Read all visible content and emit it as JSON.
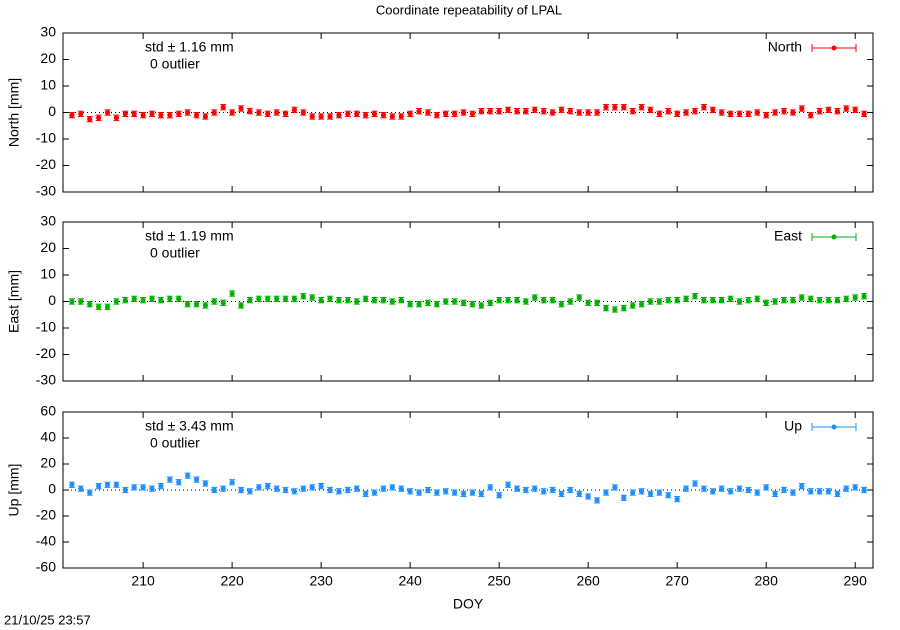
{
  "title": "Coordinate repeatability of LPAL",
  "footer": "21/10/25 23:57",
  "chart_data": [
    {
      "type": "errorbar",
      "ylabel": "North [mm]",
      "xlim": [
        201,
        292
      ],
      "ylim": [
        -30,
        30
      ],
      "yticks": [
        -30,
        -20,
        -10,
        0,
        10,
        20,
        30
      ],
      "xticks": [
        210,
        220,
        230,
        240,
        250,
        260,
        270,
        280,
        290
      ],
      "zero_line": true,
      "annotations": [
        "std ± 1.16 mm",
        "0 outlier"
      ],
      "x": [
        202,
        203,
        204,
        205,
        206,
        207,
        208,
        209,
        210,
        211,
        212,
        213,
        214,
        215,
        216,
        217,
        218,
        219,
        220,
        221,
        222,
        223,
        224,
        225,
        226,
        227,
        228,
        229,
        230,
        231,
        232,
        233,
        234,
        235,
        236,
        237,
        238,
        239,
        240,
        241,
        242,
        243,
        244,
        245,
        246,
        247,
        248,
        249,
        250,
        251,
        252,
        253,
        254,
        255,
        256,
        257,
        258,
        259,
        260,
        261,
        262,
        263,
        264,
        265,
        266,
        267,
        268,
        269,
        270,
        271,
        272,
        273,
        274,
        275,
        276,
        277,
        278,
        279,
        280,
        281,
        282,
        283,
        284,
        285,
        286,
        287,
        288,
        289,
        290,
        291
      ],
      "series": [
        {
          "name": "North",
          "color": "#ff0000",
          "error": 1,
          "values": [
            -1,
            -0.5,
            -2.5,
            -2,
            0,
            -2,
            -0.5,
            -0.5,
            -1,
            -0.5,
            -1,
            -1,
            -0.5,
            0,
            -1,
            -1.5,
            0,
            2,
            0,
            1.5,
            0.5,
            0,
            -0.5,
            0,
            -0.5,
            1,
            0,
            -1.5,
            -1.5,
            -1.5,
            -1,
            -0.5,
            -0.5,
            -1,
            -0.5,
            -1,
            -1.5,
            -1.5,
            -0.5,
            0.5,
            0,
            -1,
            -0.5,
            -0.5,
            0,
            -0.5,
            0.5,
            0.5,
            0.5,
            1,
            0.5,
            0.5,
            1,
            0.5,
            0,
            1,
            0.5,
            0,
            0,
            0,
            2,
            2,
            2,
            0.5,
            2,
            1,
            -0.5,
            0.5,
            -0.5,
            0,
            0.5,
            2,
            1,
            0,
            -0.5,
            -0.5,
            -0.5,
            0,
            -1,
            0,
            0.5,
            0,
            1.5,
            -1,
            0.5,
            1,
            0.5,
            1.5,
            1,
            -0.5
          ]
        }
      ]
    },
    {
      "type": "errorbar",
      "ylabel": "East [mm]",
      "xlim": [
        201,
        292
      ],
      "ylim": [
        -30,
        30
      ],
      "yticks": [
        -30,
        -20,
        -10,
        0,
        10,
        20,
        30
      ],
      "xticks": [
        210,
        220,
        230,
        240,
        250,
        260,
        270,
        280,
        290
      ],
      "zero_line": true,
      "annotations": [
        "std ± 1.19 mm",
        "0 outlier"
      ],
      "x": [
        202,
        203,
        204,
        205,
        206,
        207,
        208,
        209,
        210,
        211,
        212,
        213,
        214,
        215,
        216,
        217,
        218,
        219,
        220,
        221,
        222,
        223,
        224,
        225,
        226,
        227,
        228,
        229,
        230,
        231,
        232,
        233,
        234,
        235,
        236,
        237,
        238,
        239,
        240,
        241,
        242,
        243,
        244,
        245,
        246,
        247,
        248,
        249,
        250,
        251,
        252,
        253,
        254,
        255,
        256,
        257,
        258,
        259,
        260,
        261,
        262,
        263,
        264,
        265,
        266,
        267,
        268,
        269,
        270,
        271,
        272,
        273,
        274,
        275,
        276,
        277,
        278,
        279,
        280,
        281,
        282,
        283,
        284,
        285,
        286,
        287,
        288,
        289,
        290,
        291
      ],
      "series": [
        {
          "name": "East",
          "color": "#00b000",
          "error": 1,
          "values": [
            0,
            0,
            -1,
            -2,
            -2,
            0,
            0.5,
            1,
            0.5,
            1,
            0.5,
            1,
            1,
            -1,
            -1,
            -1.5,
            0,
            -0.5,
            3,
            -1.5,
            0.5,
            1,
            1,
            1,
            1,
            1,
            2,
            1.5,
            0.5,
            1,
            0.5,
            0.5,
            0,
            1,
            0.5,
            0.5,
            0,
            0.5,
            -1,
            -1,
            -0.5,
            -1,
            0,
            0,
            -0.5,
            -1,
            -1.5,
            -0.5,
            0.5,
            0.5,
            0.5,
            0,
            1.5,
            0.5,
            0.5,
            -1,
            0,
            1.5,
            -0.5,
            -0.5,
            -2.5,
            -3,
            -2.5,
            -1.5,
            -1,
            0,
            0,
            0.5,
            0.5,
            1,
            2,
            0.5,
            0.5,
            0.5,
            1,
            0,
            0.5,
            1,
            -0.5,
            0,
            0.5,
            0.5,
            1.5,
            1,
            0.5,
            0.5,
            0.5,
            1,
            1.5,
            2
          ]
        }
      ]
    },
    {
      "type": "errorbar",
      "ylabel": "Up [mm]",
      "xlabel": "DOY",
      "xlim": [
        201,
        292
      ],
      "ylim": [
        -60,
        60
      ],
      "yticks": [
        -60,
        -40,
        -20,
        0,
        20,
        40,
        60
      ],
      "xticks": [
        210,
        220,
        230,
        240,
        250,
        260,
        270,
        280,
        290
      ],
      "zero_line": true,
      "annotations": [
        "std ± 3.43 mm",
        "0 outlier"
      ],
      "x": [
        202,
        203,
        204,
        205,
        206,
        207,
        208,
        209,
        210,
        211,
        212,
        213,
        214,
        215,
        216,
        217,
        218,
        219,
        220,
        221,
        222,
        223,
        224,
        225,
        226,
        227,
        228,
        229,
        230,
        231,
        232,
        233,
        234,
        235,
        236,
        237,
        238,
        239,
        240,
        241,
        242,
        243,
        244,
        245,
        246,
        247,
        248,
        249,
        250,
        251,
        252,
        253,
        254,
        255,
        256,
        257,
        258,
        259,
        260,
        261,
        262,
        263,
        264,
        265,
        266,
        267,
        268,
        269,
        270,
        271,
        272,
        273,
        274,
        275,
        276,
        277,
        278,
        279,
        280,
        281,
        282,
        283,
        284,
        285,
        286,
        287,
        288,
        289,
        290,
        291
      ],
      "series": [
        {
          "name": "Up",
          "color": "#1e90ff",
          "error": 2,
          "values": [
            4,
            1,
            -2,
            3,
            4,
            4,
            0,
            2,
            2,
            1,
            3,
            8,
            6,
            11,
            8,
            5,
            0,
            1,
            6,
            0,
            -1,
            2,
            3,
            1,
            0,
            -1,
            1,
            2,
            3,
            0,
            -1,
            0,
            1,
            -3,
            -2,
            1,
            2,
            1,
            -1,
            -2,
            0,
            -2,
            -1,
            -2,
            -3,
            -2,
            -3,
            2,
            -4,
            4,
            1,
            0,
            1,
            -1,
            0,
            -3,
            0,
            -3,
            -5,
            -8,
            -2,
            2,
            -6,
            -2,
            -1,
            -3,
            -2,
            -4,
            -7,
            1,
            5,
            1,
            -1,
            1,
            -1,
            1,
            0,
            -2,
            2,
            -3,
            0,
            -2,
            3,
            -1,
            -1,
            -1,
            -3,
            1,
            2,
            0
          ]
        }
      ]
    }
  ]
}
